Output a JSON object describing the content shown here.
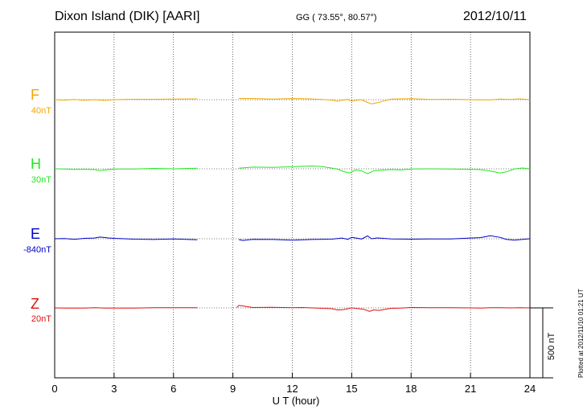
{
  "header": {
    "station": "Dixon Island (DIK)  [AARI]",
    "coords": "GG ( 73.55°,  80.57°)",
    "date": "2012/10/11"
  },
  "footer": {
    "plotted": "Plotted at 2012/11/10 01:21  UT",
    "scalebar": "500 nT"
  },
  "colors": {
    "F": "#f0a800",
    "H": "#22e822",
    "E": "#0000c8",
    "Z": "#e01010"
  },
  "chart_data": {
    "type": "line",
    "title": "Dixon Island (DIK)  [AARI]",
    "xlabel": "U T (hour)",
    "ylabel": "",
    "xlim": [
      0,
      24
    ],
    "xticks": [
      0,
      3,
      6,
      9,
      12,
      15,
      18,
      21,
      24
    ],
    "xtick_labels": [
      "0",
      "3",
      "6",
      "9",
      "12",
      "15",
      "18",
      "21",
      "24"
    ],
    "grid": true,
    "unit": "nT",
    "scale_bar_nT": 500,
    "data_gap_hours": [
      7.3,
      9.2
    ],
    "series": [
      {
        "name": "F",
        "baseline_label": "40nT",
        "color": "#f0a800",
        "x": [
          0,
          0.5,
          1,
          1.5,
          2,
          2.5,
          3,
          4,
          5,
          6,
          7.2,
          9.3,
          10,
          11,
          12,
          12.5,
          13,
          13.5,
          14,
          14.3,
          14.5,
          14.8,
          15,
          15.3,
          15.5,
          15.8,
          16,
          16.3,
          16.6,
          17,
          17.5,
          18,
          18.5,
          19,
          20,
          21,
          21.5,
          22,
          22.5,
          23,
          23.5,
          24
        ],
        "y": [
          0,
          -3,
          1,
          -4,
          0,
          -5,
          0,
          3,
          3,
          4,
          6,
          9,
          8,
          4,
          8,
          7,
          5,
          1,
          -3,
          -12,
          -4,
          2,
          -10,
          -3,
          0,
          -20,
          -30,
          -22,
          -10,
          4,
          6,
          7,
          4,
          2,
          3,
          0,
          -2,
          -2,
          4,
          2,
          6,
          0
        ]
      },
      {
        "name": "H",
        "baseline_label": "30nT",
        "color": "#22e822",
        "x": [
          0,
          0.5,
          1,
          1.5,
          2,
          2.3,
          2.7,
          3,
          4,
          5,
          6,
          7.2,
          9.3,
          10,
          11,
          12,
          12.5,
          13,
          13.5,
          14,
          14.3,
          14.6,
          14.9,
          15.2,
          15.5,
          15.8,
          16.1,
          16.4,
          17,
          17.5,
          18,
          19,
          20,
          21,
          21.5,
          22,
          22.5,
          22.8,
          23.2,
          23.6,
          24
        ],
        "y": [
          0,
          -1,
          -4,
          -3,
          -6,
          -12,
          -6,
          -2,
          -1,
          3,
          0,
          4,
          4,
          12,
          10,
          15,
          18,
          20,
          16,
          5,
          -3,
          -20,
          -30,
          -8,
          -15,
          -35,
          -15,
          -10,
          -5,
          -8,
          -2,
          0,
          -1,
          -4,
          -6,
          -16,
          -30,
          -22,
          -2,
          6,
          0
        ]
      },
      {
        "name": "E",
        "baseline_label": "-840nT",
        "color": "#0000c8",
        "x": [
          0,
          0.5,
          1,
          1.5,
          2,
          2.3,
          2.7,
          3,
          4,
          5,
          6,
          7.2,
          9.3,
          9.5,
          10,
          11,
          12,
          13,
          14,
          14.5,
          14.8,
          15,
          15.5,
          15.8,
          16,
          16.3,
          17,
          18,
          19,
          20,
          21,
          21.5,
          22,
          22.5,
          22.8,
          23.2,
          24
        ],
        "y": [
          0,
          2,
          -4,
          3,
          5,
          12,
          6,
          3,
          -3,
          -5,
          -2,
          -7,
          -6,
          -12,
          -4,
          -5,
          -10,
          -5,
          -3,
          5,
          -4,
          10,
          -2,
          20,
          0,
          6,
          -2,
          -3,
          -1,
          -2,
          5,
          8,
          22,
          10,
          -4,
          -10,
          0
        ]
      },
      {
        "name": "Z",
        "baseline_label": "20nT",
        "color": "#e01010",
        "x": [
          0,
          0.5,
          1,
          1.5,
          2,
          2.5,
          3,
          4,
          5,
          6,
          7.2,
          9.2,
          9.3,
          10,
          11,
          12,
          12.5,
          13,
          13.5,
          14,
          14.3,
          14.6,
          15,
          15.3,
          15.6,
          15.9,
          16.1,
          16.4,
          16.7,
          17,
          17.5,
          18,
          19,
          20,
          21,
          21.5,
          22,
          22.5,
          23,
          23.5,
          24
        ],
        "y": [
          0,
          -1,
          -2,
          -1,
          1,
          -1,
          -2,
          -1,
          1,
          1,
          2,
          2,
          18,
          3,
          4,
          1,
          3,
          0,
          -3,
          -6,
          -15,
          -12,
          0,
          -5,
          -10,
          -25,
          -15,
          -18,
          -10,
          -3,
          -1,
          3,
          2,
          1,
          0,
          -2,
          2,
          1,
          0,
          2,
          0
        ]
      }
    ]
  }
}
